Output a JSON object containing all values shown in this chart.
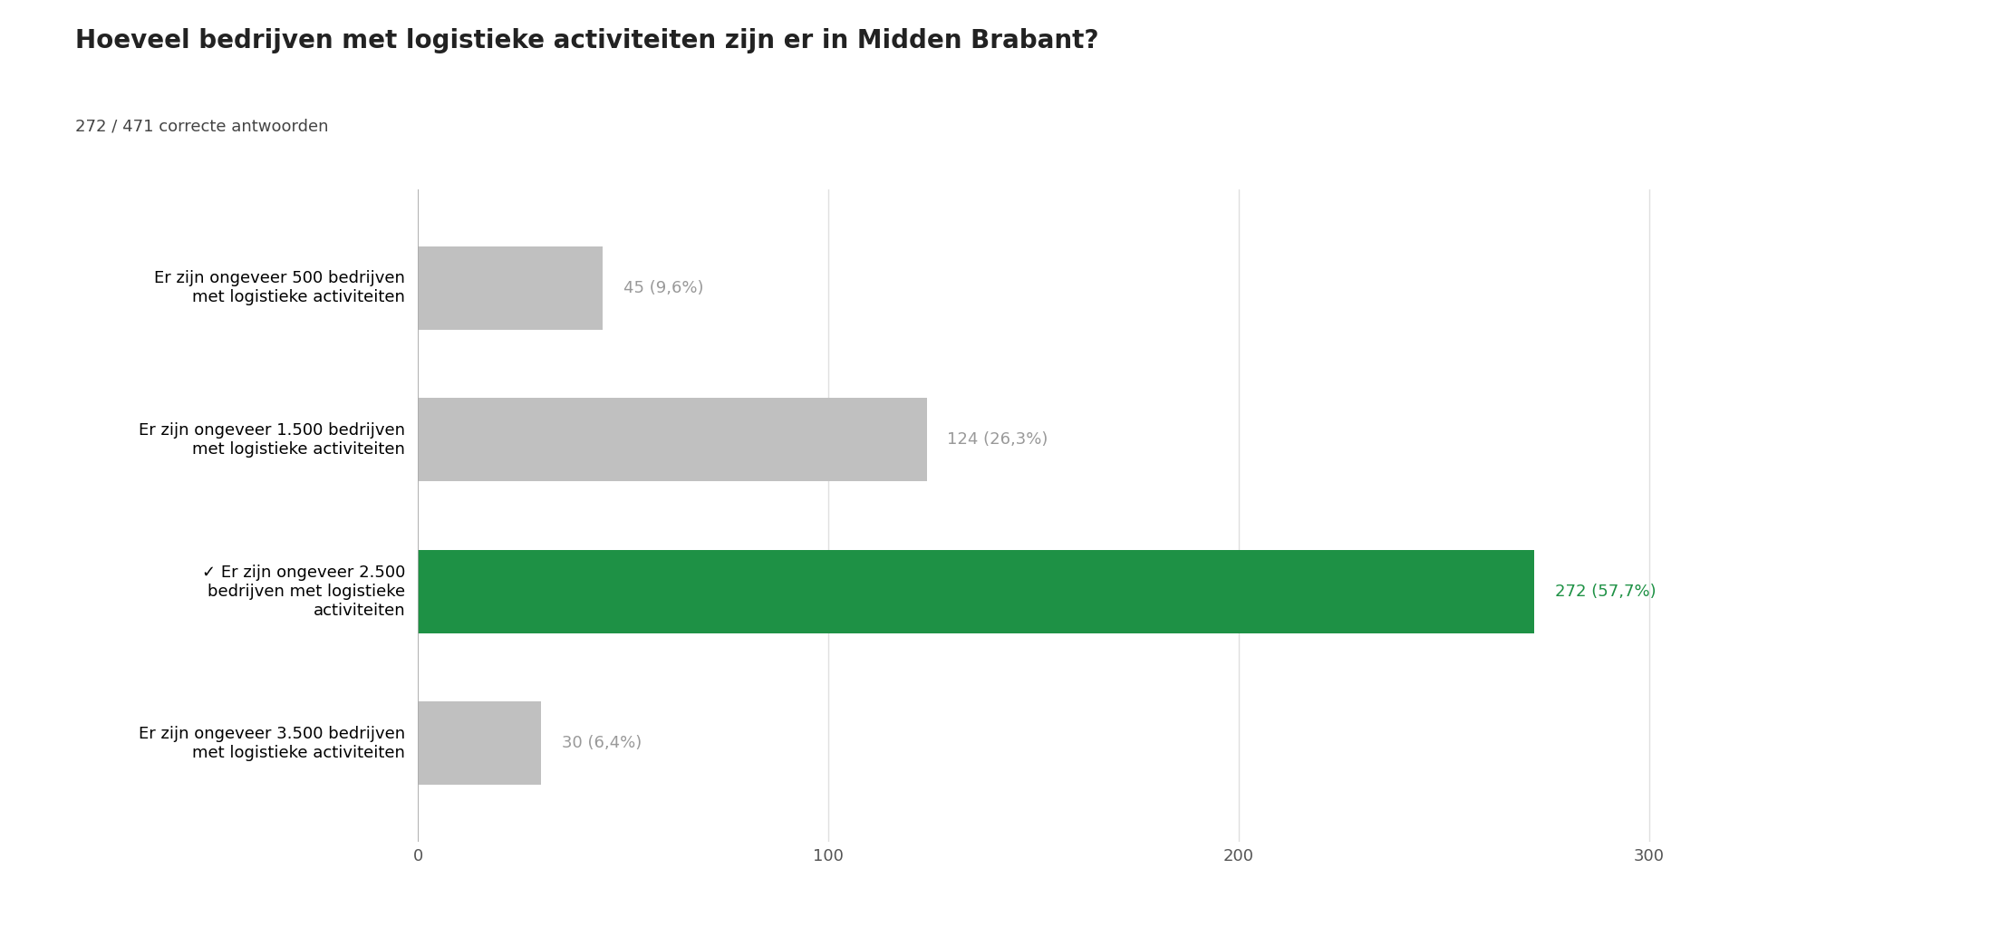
{
  "title": "Hoeveel bedrijven met logistieke activiteiten zijn er in Midden Brabant?",
  "subtitle": "272 / 471 correcte antwoorden",
  "categories": [
    "Er zijn ongeveer 500 bedrijven\nmet logistieke activiteiten",
    "Er zijn ongeveer 1.500 bedrijven\nmet logistieke activiteiten",
    "✓ Er zijn ongeveer 2.500\nbedrijven met logistieke\nactiviteiten",
    "Er zijn ongeveer 3.500 bedrijven\nmet logistieke activiteiten"
  ],
  "values": [
    45,
    124,
    272,
    30
  ],
  "labels": [
    "45 (9,6%)",
    "124 (26,3%)",
    "272 (57,7%)",
    "30 (6,4%)"
  ],
  "bar_colors": [
    "#c0c0c0",
    "#c0c0c0",
    "#1e9145",
    "#c0c0c0"
  ],
  "label_colors": [
    "#999999",
    "#999999",
    "#1e9145",
    "#999999"
  ],
  "xlim": [
    0,
    320
  ],
  "xticks": [
    0,
    100,
    200,
    300
  ],
  "background_color": "#ffffff",
  "title_fontsize": 20,
  "subtitle_fontsize": 13,
  "label_fontsize": 13,
  "tick_fontsize": 13,
  "ytick_fontsize": 13
}
